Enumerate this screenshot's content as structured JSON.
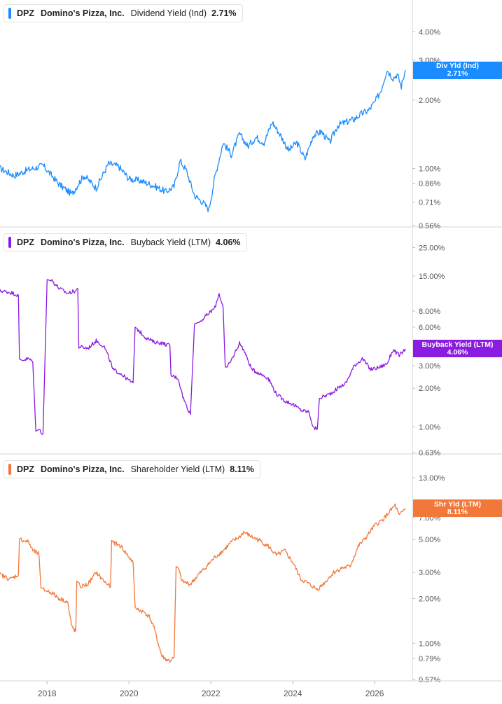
{
  "chart_data": [
    {
      "type": "line",
      "ticker": "DPZ",
      "company": "Domino's Pizza, Inc.",
      "metric": "Dividend Yield (Ind)",
      "value_label": "2.71%",
      "color": "#1a8cff",
      "scale": "log",
      "ylim": [
        0.56,
        5.0
      ],
      "y_ticks": [
        4.0,
        3.0,
        2.0,
        1.0,
        0.86,
        0.71,
        0.56
      ],
      "y_tick_labels": [
        "4.00%",
        "3.00%",
        "2.00%",
        "1.00%",
        "0.86%",
        "0.71%",
        "0.56%"
      ],
      "tag_line1": "Div Yld (Ind)",
      "tag_line2": "2.71%",
      "tag_value": 2.71,
      "x": [
        2016.85,
        2017.2,
        2017.5,
        2017.9,
        2018.3,
        2018.6,
        2018.9,
        2019.2,
        2019.5,
        2019.75,
        2020.0,
        2020.3,
        2020.6,
        2020.9,
        2021.1,
        2021.25,
        2021.4,
        2021.6,
        2021.8,
        2021.95,
        2022.1,
        2022.3,
        2022.5,
        2022.7,
        2022.9,
        2023.1,
        2023.3,
        2023.5,
        2023.7,
        2023.9,
        2024.1,
        2024.3,
        2024.5,
        2024.7,
        2024.9,
        2025.1,
        2025.3,
        2025.5,
        2025.7,
        2025.85,
        2026.0,
        2026.15,
        2026.3,
        2026.45,
        2026.55,
        2026.65,
        2026.75
      ],
      "values": [
        1.0,
        0.93,
        0.98,
        1.03,
        0.85,
        0.77,
        0.93,
        0.82,
        1.05,
        1.02,
        0.9,
        0.88,
        0.84,
        0.79,
        0.83,
        1.08,
        0.98,
        0.76,
        0.71,
        0.66,
        0.92,
        1.3,
        1.15,
        1.42,
        1.25,
        1.37,
        1.3,
        1.6,
        1.4,
        1.2,
        1.3,
        1.1,
        1.4,
        1.45,
        1.3,
        1.55,
        1.6,
        1.65,
        1.75,
        1.8,
        1.95,
        2.2,
        2.72,
        2.5,
        2.6,
        2.3,
        2.71
      ]
    },
    {
      "type": "line",
      "ticker": "DPZ",
      "company": "Domino's Pizza, Inc.",
      "metric": "Buyback Yield (LTM)",
      "value_label": "4.06%",
      "color": "#8a1be0",
      "scale": "log",
      "ylim": [
        0.63,
        30.0
      ],
      "y_ticks": [
        25.0,
        15.0,
        8.0,
        6.0,
        3.0,
        2.0,
        1.0,
        0.63
      ],
      "y_tick_labels": [
        "25.00%",
        "15.00%",
        "8.00%",
        "6.00%",
        "3.00%",
        "2.00%",
        "1.00%",
        "0.63%"
      ],
      "tag_line1": "Buyback Yield (LTM)",
      "tag_line2": "4.06%",
      "tag_value": 4.06,
      "x": [
        2016.85,
        2017.1,
        2017.3,
        2017.35,
        2017.55,
        2017.65,
        2017.8,
        2017.85,
        2017.9,
        2018.1,
        2018.3,
        2018.5,
        2018.7,
        2018.75,
        2018.8,
        2019.0,
        2019.2,
        2019.4,
        2019.55,
        2019.6,
        2019.8,
        2020.0,
        2020.1,
        2020.2,
        2020.4,
        2020.6,
        2020.8,
        2021.0,
        2021.05,
        2021.2,
        2021.3,
        2021.35,
        2021.5,
        2021.7,
        2021.9,
        2022.1,
        2022.2,
        2022.3,
        2022.4,
        2022.5,
        2022.7,
        2022.8,
        2023.0,
        2023.2,
        2023.4,
        2023.6,
        2023.8,
        2024.0,
        2024.2,
        2024.4,
        2024.5,
        2024.6,
        2024.7,
        2024.9,
        2025.1,
        2025.3,
        2025.5,
        2025.7,
        2025.9,
        2026.1,
        2026.3,
        2026.45,
        2026.6,
        2026.75
      ],
      "values": [
        11.5,
        11.2,
        10.6,
        3.3,
        3.4,
        3.2,
        0.95,
        0.92,
        0.88,
        14.0,
        12.0,
        11.0,
        11.5,
        12.0,
        4.2,
        4.1,
        4.7,
        4.2,
        3.2,
        2.8,
        2.6,
        2.3,
        2.2,
        5.8,
        5.0,
        4.6,
        4.5,
        4.3,
        2.5,
        2.4,
        1.8,
        1.6,
        1.25,
        6.5,
        7.4,
        8.5,
        11.0,
        8.5,
        2.9,
        3.3,
        4.5,
        4.0,
        2.8,
        2.6,
        2.4,
        1.8,
        1.6,
        1.5,
        1.35,
        1.3,
        0.98,
        0.96,
        1.7,
        1.8,
        2.0,
        2.2,
        3.0,
        3.4,
        2.8,
        2.9,
        3.1,
        4.0,
        3.6,
        4.06
      ]
    },
    {
      "type": "line",
      "ticker": "DPZ",
      "company": "Domino's Pizza, Inc.",
      "metric": "Shareholder Yield (LTM)",
      "value_label": "8.11%",
      "color": "#f2783a",
      "scale": "log",
      "ylim": [
        0.57,
        16.0
      ],
      "y_ticks": [
        13.0,
        7.0,
        5.0,
        3.0,
        2.0,
        1.0,
        0.79,
        0.57
      ],
      "y_tick_labels": [
        "13.00%",
        "7.00%",
        "5.00%",
        "3.00%",
        "2.00%",
        "1.00%",
        "0.79%",
        "0.57%"
      ],
      "tag_line1": "Shr Yld (LTM)",
      "tag_line2": "8.11%",
      "tag_value": 8.11,
      "x": [
        2016.85,
        2017.1,
        2017.3,
        2017.35,
        2017.55,
        2017.65,
        2017.8,
        2017.9,
        2018.1,
        2018.3,
        2018.5,
        2018.6,
        2018.7,
        2018.75,
        2018.8,
        2019.0,
        2019.2,
        2019.4,
        2019.55,
        2019.6,
        2019.8,
        2020.0,
        2020.1,
        2020.2,
        2020.4,
        2020.5,
        2020.6,
        2020.8,
        2020.9,
        2021.0,
        2021.1,
        2021.2,
        2021.3,
        2021.5,
        2021.7,
        2021.9,
        2022.1,
        2022.3,
        2022.5,
        2022.7,
        2022.8,
        2023.0,
        2023.2,
        2023.4,
        2023.6,
        2023.8,
        2024.0,
        2024.2,
        2024.4,
        2024.6,
        2024.8,
        2025.0,
        2025.2,
        2025.4,
        2025.6,
        2025.8,
        2026.0,
        2026.2,
        2026.35,
        2026.5,
        2026.6,
        2026.75
      ],
      "values": [
        2.9,
        2.7,
        2.9,
        5.0,
        4.8,
        4.2,
        4.0,
        2.3,
        2.2,
        2.0,
        1.9,
        1.3,
        1.2,
        2.6,
        2.4,
        2.5,
        3.0,
        2.6,
        2.4,
        4.8,
        4.5,
        3.8,
        3.5,
        1.7,
        1.6,
        1.5,
        1.3,
        0.82,
        0.78,
        0.76,
        0.8,
        3.2,
        2.6,
        2.5,
        2.9,
        3.3,
        3.8,
        4.2,
        4.8,
        5.2,
        5.6,
        5.2,
        4.9,
        4.5,
        3.9,
        4.2,
        3.5,
        2.7,
        2.5,
        2.3,
        2.6,
        3.0,
        3.2,
        3.3,
        4.5,
        5.2,
        6.2,
        6.8,
        7.6,
        8.5,
        7.2,
        8.11
      ]
    }
  ],
  "x_axis": {
    "tick_values": [
      2018,
      2020,
      2022,
      2024,
      2026
    ],
    "tick_labels": [
      "2018",
      "2020",
      "2022",
      "2024",
      "2026"
    ],
    "range": [
      2016.85,
      2026.75
    ]
  }
}
